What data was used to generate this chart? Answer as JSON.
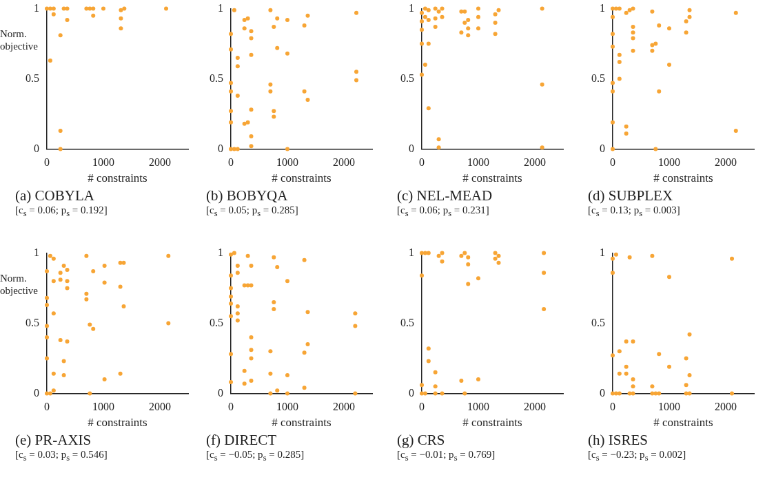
{
  "chart_data": [
    {
      "type": "scatter",
      "title": "(a) COBYLA",
      "subtitle": "[c$_{s}$ = 0.06; p$_{s}$ = 0.192]",
      "xlabel": "# constraints",
      "ylabel": "Norm. objective",
      "xlim": [
        0,
        2500
      ],
      "xticks": [
        0,
        1000,
        2000
      ],
      "ylim": [
        0,
        1
      ],
      "yticks": [
        0,
        0.5,
        1
      ],
      "marker": "circle",
      "series": [
        {
          "color": "#f7a535",
          "x": [
            0,
            60,
            120,
            120,
            60,
            240,
            240,
            240,
            300,
            360,
            360,
            700,
            760,
            820,
            820,
            1000,
            1310,
            1310,
            1310,
            1370,
            2110
          ],
          "values": [
            1,
            1,
            1,
            0.96,
            0.63,
            0.81,
            0.13,
            0,
            1,
            1,
            0.92,
            1,
            1,
            1,
            0.95,
            1,
            0.99,
            0.93,
            0.86,
            1,
            1
          ]
        }
      ]
    },
    {
      "type": "scatter",
      "title": "(b) BOBYQA",
      "subtitle": "[c$_{s}$ = 0.05; p$_{s}$ = 0.285]",
      "xlabel": "# constraints",
      "xlim": [
        0,
        2500
      ],
      "xticks": [
        0,
        1000,
        2000
      ],
      "ylim": [
        0,
        1
      ],
      "yticks": [
        0,
        0.5,
        1
      ],
      "marker": "circle",
      "series": [
        {
          "color": "#f7a535",
          "x": [
            0,
            0,
            0,
            0,
            0,
            0,
            0,
            60,
            120,
            60,
            120,
            120,
            120,
            240,
            240,
            240,
            300,
            300,
            360,
            360,
            360,
            360,
            360,
            360,
            700,
            700,
            700,
            760,
            760,
            760,
            820,
            820,
            1000,
            1000,
            1000,
            1300,
            1300,
            1360,
            1360,
            2220,
            2220,
            2220
          ],
          "values": [
            0.82,
            0.71,
            0.47,
            0.41,
            0.27,
            0.19,
            0,
            0,
            0,
            0.99,
            0.65,
            0.59,
            0.38,
            0.92,
            0.86,
            0.18,
            0.19,
            0.93,
            0.84,
            0.79,
            0.67,
            0.28,
            0.09,
            0.02,
            0.99,
            0.46,
            0.41,
            0.87,
            0.27,
            0.23,
            0.93,
            0.72,
            0.92,
            0.68,
            0,
            0.88,
            0.41,
            0.95,
            0.35,
            0.97,
            0.55,
            0.49
          ]
        }
      ]
    },
    {
      "type": "scatter",
      "title": "(c) NEL-MEAD",
      "subtitle": "[c$_{s}$ = 0.06; p$_{s}$ = 0.231]",
      "xlabel": "# constraints",
      "xlim": [
        0,
        2500
      ],
      "xticks": [
        0,
        1000,
        2000
      ],
      "ylim": [
        0,
        1
      ],
      "yticks": [
        0,
        0.5,
        1
      ],
      "marker": "circle",
      "series": [
        {
          "color": "#f7a535",
          "x": [
            0,
            0,
            0,
            0,
            0,
            60,
            60,
            60,
            120,
            120,
            120,
            120,
            240,
            240,
            240,
            300,
            300,
            300,
            360,
            360,
            700,
            700,
            760,
            760,
            820,
            820,
            820,
            1000,
            1000,
            1000,
            1300,
            1300,
            1300,
            1360,
            2130,
            2130,
            2130
          ],
          "values": [
            0.97,
            0.91,
            0.85,
            0.75,
            0.53,
            1,
            0.94,
            0.6,
            0.99,
            0.92,
            0.75,
            0.29,
            1,
            0.93,
            0.87,
            0.07,
            0.01,
            0.98,
            1,
            0.94,
            0.98,
            0.83,
            0.98,
            0.9,
            0.92,
            0.86,
            0.81,
            1,
            0.94,
            0.86,
            0.96,
            0.9,
            0.82,
            0.99,
            1,
            0.46,
            0.01
          ]
        }
      ]
    },
    {
      "type": "scatter",
      "title": "(d) SUBPLEX",
      "subtitle": "[c$_{s}$ = 0.13; p$_{s}$ = 0.003]",
      "xlabel": "# constraints",
      "xlim": [
        0,
        2500
      ],
      "xticks": [
        0,
        1000,
        2000
      ],
      "ylim": [
        0,
        1
      ],
      "yticks": [
        0,
        0.5,
        1
      ],
      "marker": "circle",
      "series": [
        {
          "color": "#f7a535",
          "x": [
            0,
            0,
            0,
            0,
            0,
            0,
            0,
            0,
            60,
            120,
            120,
            120,
            120,
            240,
            240,
            240,
            300,
            360,
            360,
            360,
            360,
            360,
            700,
            700,
            700,
            760,
            760,
            820,
            820,
            1000,
            1000,
            1300,
            1300,
            1360,
            1360,
            2180,
            2180
          ],
          "values": [
            1,
            0.94,
            0.82,
            0.73,
            0.47,
            0.41,
            0.19,
            0,
            1,
            1,
            0.67,
            0.62,
            0.5,
            0.97,
            0.16,
            0.11,
            0.99,
            1,
            0.87,
            0.83,
            0.79,
            0.7,
            0.98,
            0.74,
            0.7,
            0.75,
            0,
            0.88,
            0.41,
            0.86,
            0.6,
            0.91,
            0.83,
            0.99,
            0.94,
            0.97,
            0.13
          ]
        }
      ]
    },
    {
      "type": "scatter",
      "title": "(e) PR-AXIS",
      "subtitle": "[c$_{s}$ = 0.03; p$_{s}$ = 0.546]",
      "xlabel": "# constraints",
      "ylabel": "Norm. objective",
      "xlim": [
        0,
        2500
      ],
      "xticks": [
        0,
        1000,
        2000
      ],
      "ylim": [
        0,
        1
      ],
      "yticks": [
        0,
        0.5,
        1
      ],
      "marker": "circle",
      "series": [
        {
          "color": "#f7a535",
          "x": [
            0,
            0,
            0,
            0,
            0,
            0,
            0,
            60,
            60,
            120,
            120,
            120,
            120,
            120,
            240,
            240,
            240,
            300,
            300,
            300,
            360,
            360,
            360,
            360,
            700,
            700,
            700,
            760,
            760,
            820,
            820,
            1020,
            1020,
            1020,
            1300,
            1300,
            1300,
            1360,
            1360,
            2150,
            2150
          ],
          "values": [
            0.87,
            0.68,
            0.63,
            0.48,
            0.4,
            0.25,
            0,
            0,
            0.98,
            0.96,
            0.8,
            0.57,
            0.14,
            0.02,
            0.86,
            0.81,
            0.38,
            0.91,
            0.23,
            0.13,
            0.88,
            0.8,
            0.75,
            0.37,
            0.98,
            0.71,
            0.67,
            0.49,
            0,
            0.46,
            0.87,
            0.91,
            0.79,
            0.1,
            0.93,
            0.76,
            0.14,
            0.93,
            0.62,
            0.98,
            0.5
          ]
        }
      ]
    },
    {
      "type": "scatter",
      "title": "(f) DIRECT",
      "subtitle": "[c$_{s}$ = −0.05; p$_{s}$ = 0.285]",
      "xlabel": "# constraints",
      "xlim": [
        0,
        2500
      ],
      "xticks": [
        0,
        1000,
        2000
      ],
      "ylim": [
        0,
        1
      ],
      "yticks": [
        0,
        0.5,
        1
      ],
      "marker": "circle",
      "series": [
        {
          "color": "#f7a535",
          "x": [
            0,
            0,
            0,
            0,
            0,
            0,
            0,
            0,
            60,
            120,
            120,
            120,
            120,
            120,
            240,
            240,
            240,
            300,
            300,
            360,
            360,
            360,
            360,
            360,
            360,
            700,
            700,
            700,
            760,
            760,
            760,
            820,
            820,
            1000,
            1000,
            1000,
            1300,
            1300,
            1300,
            1360,
            1360,
            2200,
            2200,
            2200
          ],
          "values": [
            0.99,
            0.84,
            0.75,
            0.69,
            0.64,
            0.55,
            0.28,
            0.08,
            1,
            0.91,
            0.86,
            0.62,
            0.57,
            0.52,
            0.77,
            0.16,
            0.07,
            0.98,
            0.77,
            0.91,
            0.77,
            0.4,
            0.31,
            0.25,
            0.09,
            0.3,
            0.14,
            0,
            0.97,
            0.65,
            0.6,
            0.9,
            0.02,
            0.8,
            0.13,
            0,
            0.95,
            0.29,
            0.04,
            0.58,
            0.35,
            0.57,
            0.48,
            0
          ]
        }
      ]
    },
    {
      "type": "scatter",
      "title": "(g) CRS",
      "subtitle": "[c$_{s}$ = −0.01; p$_{s}$ = 0.769]",
      "xlabel": "# constraints",
      "xlim": [
        0,
        2500
      ],
      "xticks": [
        0,
        1000,
        2000
      ],
      "ylim": [
        0,
        1
      ],
      "yticks": [
        0,
        0.5,
        1
      ],
      "marker": "circle",
      "series": [
        {
          "color": "#f7a535",
          "x": [
            0,
            0,
            0,
            0,
            60,
            60,
            120,
            120,
            120,
            240,
            240,
            240,
            300,
            360,
            360,
            360,
            700,
            700,
            760,
            760,
            820,
            820,
            820,
            1000,
            1000,
            1300,
            1300,
            1360,
            1360,
            2160,
            2160,
            2160
          ],
          "values": [
            1,
            0.84,
            0.06,
            0,
            1,
            0,
            1,
            0.32,
            0.23,
            0.15,
            0.05,
            0,
            0.98,
            1,
            0.94,
            0,
            0.98,
            0.09,
            1,
            0,
            0.97,
            0.92,
            0.78,
            0.82,
            0.1,
            1,
            0.96,
            0.98,
            0.93,
            1,
            0.86,
            0.6
          ]
        }
      ]
    },
    {
      "type": "scatter",
      "title": "(h) ISRES",
      "subtitle": "[c$_{s}$ = −0.23; p$_{s}$ = 0.002]",
      "xlabel": "# constraints",
      "xlim": [
        0,
        2500
      ],
      "xticks": [
        0,
        1000,
        2000
      ],
      "ylim": [
        0,
        1
      ],
      "yticks": [
        0,
        0.5,
        1
      ],
      "marker": "circle",
      "series": [
        {
          "color": "#f7a535",
          "x": [
            0,
            0,
            0,
            0,
            60,
            60,
            120,
            120,
            120,
            240,
            240,
            240,
            300,
            300,
            360,
            360,
            360,
            360,
            700,
            700,
            700,
            760,
            820,
            820,
            1000,
            1000,
            1300,
            1300,
            1300,
            1360,
            1360,
            1360,
            2110,
            2110
          ],
          "values": [
            0.96,
            0.86,
            0.27,
            0,
            0.99,
            0,
            0.3,
            0.14,
            0,
            0.37,
            0.19,
            0.14,
            0.97,
            0,
            0.37,
            0.1,
            0.05,
            0,
            0.98,
            0.05,
            0,
            0,
            0.28,
            0,
            0.83,
            0.19,
            0.25,
            0.06,
            0,
            0.42,
            0.13,
            0,
            0.96,
            0
          ]
        }
      ]
    }
  ]
}
